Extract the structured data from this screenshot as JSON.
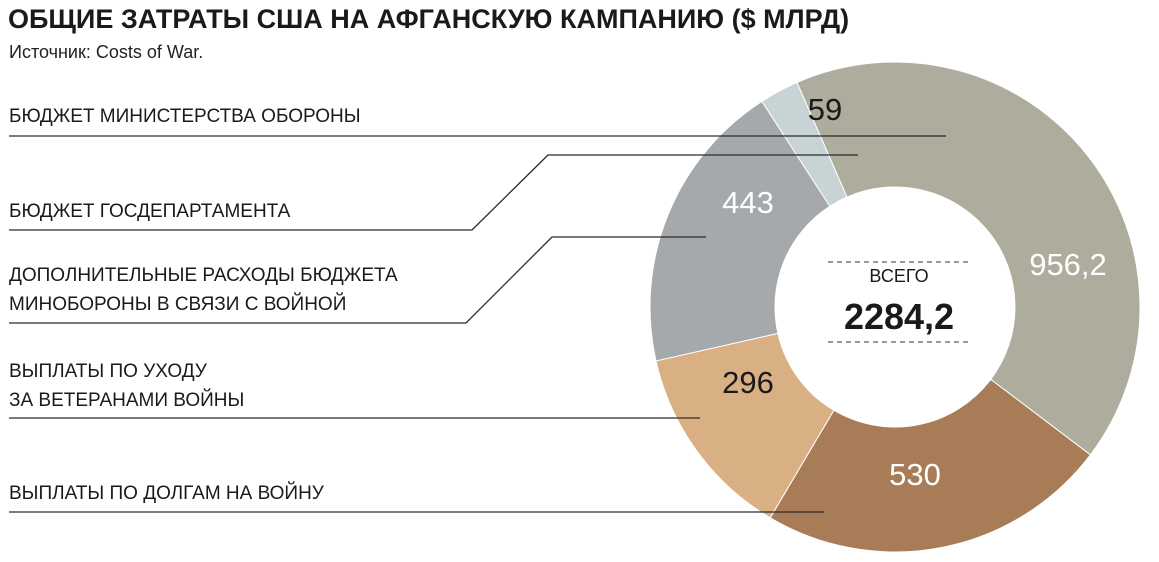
{
  "title": "ОБЩИЕ ЗАТРАТЫ США НА АФГАНСКУЮ КАМПАНИЮ ($ МЛРД)",
  "source": "Источник: Costs of War.",
  "total_label": "ВСЕГО",
  "total_value": "2284,2",
  "colors": {
    "defense": "#aeac9c",
    "state": "#c8d3d6",
    "oco": "#a6a9ab",
    "veterans": "#d9b083",
    "interest": "#a97c58",
    "leader": "#2a2a2a"
  },
  "chart_data": {
    "type": "pie",
    "variant": "donut",
    "title": "ОБЩИЕ ЗАТРАТЫ США НА АФГАНСКУЮ КАМПАНИЮ ($ МЛРД)",
    "total": 2284.2,
    "slices": [
      {
        "key": "defense",
        "name": "БЮДЖЕТ МИНИСТЕРСТВА ОБОРОНЫ",
        "lines": [
          "БЮДЖЕТ МИНИСТЕРСТВА ОБОРОНЫ"
        ],
        "value": 956.2,
        "label": "956,2",
        "color": "#aeac9c",
        "text_color": "#ffffff"
      },
      {
        "key": "interest",
        "name": "ВЫПЛАТЫ ПО ДОЛГАМ НА ВОЙНУ",
        "lines": [
          "ВЫПЛАТЫ ПО ДОЛГАМ НА ВОЙНУ"
        ],
        "value": 530,
        "label": "530",
        "color": "#a97c58",
        "text_color": "#ffffff"
      },
      {
        "key": "veterans",
        "name": "ВЫПЛАТЫ ПО УХОДУ ЗА ВЕТЕРАНАМИ ВОЙНЫ",
        "lines": [
          "ВЫПЛАТЫ ПО УХОДУ",
          "ЗА ВЕТЕРАНАМИ ВОЙНЫ"
        ],
        "value": 296,
        "label": "296",
        "color": "#d9b083",
        "text_color": "#1a1a1a"
      },
      {
        "key": "oco",
        "name": "ДОПОЛНИТЕЛЬНЫЕ РАСХОДЫ БЮДЖЕТА МИНОБОРОНЫ В СВЯЗИ С ВОЙНОЙ",
        "lines": [
          "ДОПОЛНИТЕЛЬНЫЕ РАСХОДЫ БЮДЖЕТА",
          "МИНОБОРОНЫ В СВЯЗИ С ВОЙНОЙ"
        ],
        "value": 443,
        "label": "443",
        "color": "#a6a9ab",
        "text_color": "#ffffff"
      },
      {
        "key": "state",
        "name": "БЮДЖЕТ ГОСДЕПАРТАМЕНТА",
        "lines": [
          "БЮДЖЕТ ГОСДЕПАРТАМЕНТА"
        ],
        "value": 59,
        "label": "59",
        "color": "#c8d3d6",
        "text_color": "#1a1a1a"
      }
    ]
  }
}
